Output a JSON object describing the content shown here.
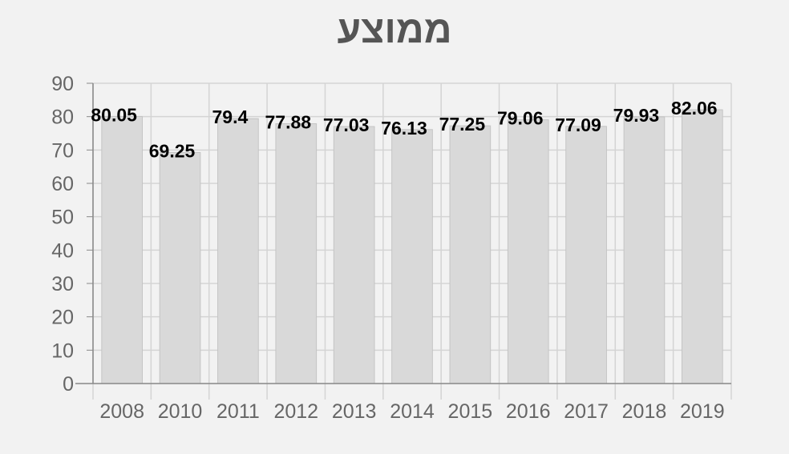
{
  "chart_data": {
    "type": "bar",
    "title": "ממוצע",
    "categories": [
      "2008",
      "2010",
      "2011",
      "2012",
      "2013",
      "2014",
      "2015",
      "2016",
      "2017",
      "2018",
      "2019"
    ],
    "values": [
      80.05,
      69.25,
      79.4,
      77.88,
      77.03,
      76.13,
      77.25,
      79.06,
      77.09,
      79.93,
      82.06
    ],
    "data_labels": [
      "80.05",
      "69.25",
      "79.4",
      "77.88",
      "77.03",
      "76.13",
      "77.25",
      "79.06",
      "77.09",
      "79.93",
      "82.06"
    ],
    "y_ticks": [
      "0",
      "10",
      "20",
      "30",
      "40",
      "50",
      "60",
      "70",
      "80",
      "90"
    ],
    "ylim": [
      0,
      90
    ],
    "grid": true,
    "legend": "none",
    "colors": {
      "bar_fill": "#d9d9d9",
      "bar_stroke": "#c4c4c4",
      "grid": "#d4d4d4",
      "axis": "#888888",
      "title": "#555555",
      "background": "#f2f2f2"
    }
  }
}
